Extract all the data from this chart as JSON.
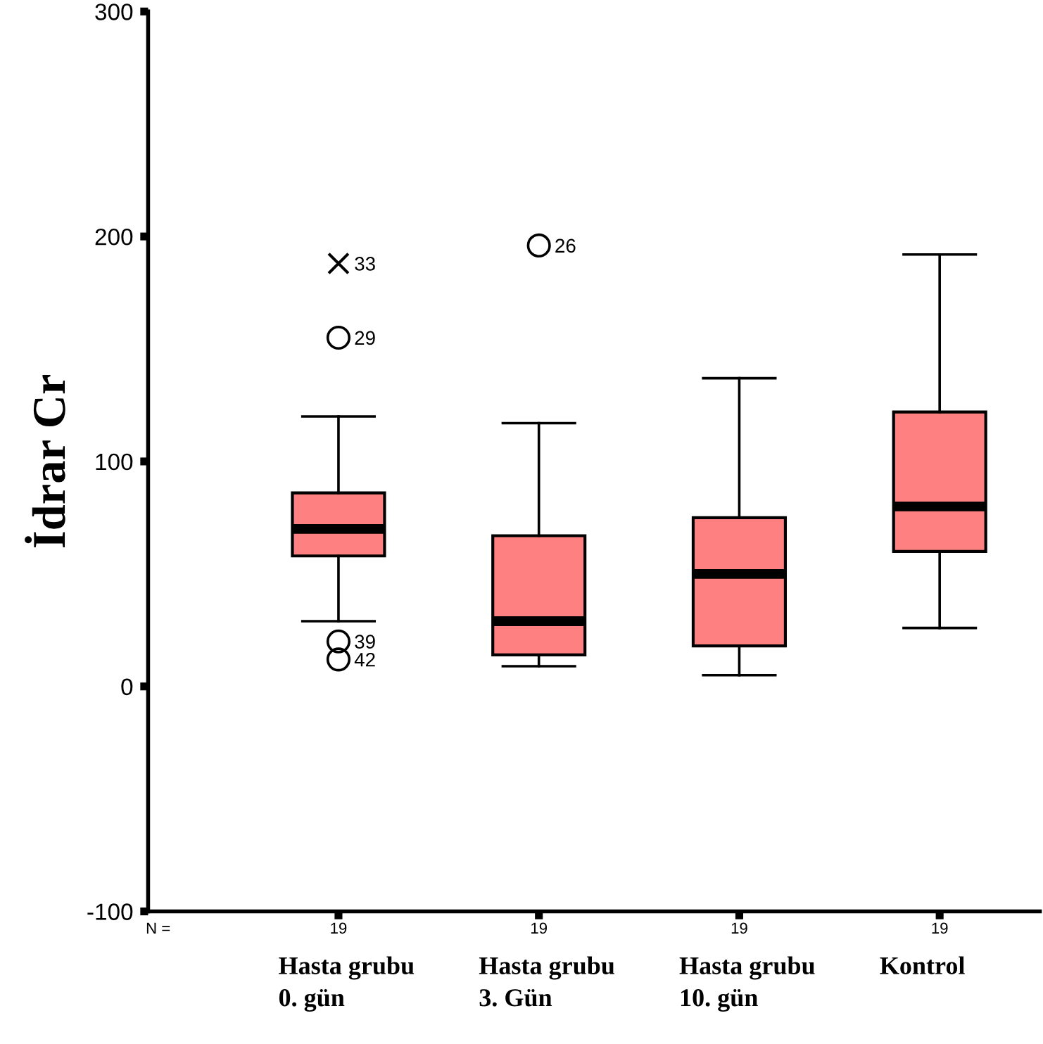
{
  "chart_data": {
    "type": "box",
    "ylabel": "İdrar Cr",
    "categories": [
      "Hasta grubu\n0. gün",
      "Hasta grubu\n3. Gün",
      "Hasta grubu\n10. gün",
      "Kontrol"
    ],
    "color": "#ff8080",
    "boxes": [
      {
        "low": 29,
        "q1": 58,
        "median": 70,
        "q3": 86,
        "high": 120,
        "outliers": [
          155,
          20,
          12
        ]
      },
      {
        "low": 9,
        "q1": 14,
        "median": 29,
        "q3": 67,
        "high": 117,
        "outliers": [
          196
        ]
      },
      {
        "low": 5,
        "q1": 18,
        "median": 50,
        "q3": 75,
        "high": 137
      },
      {
        "low": 26,
        "q1": 60,
        "median": 80,
        "q3": 122,
        "high": 192
      }
    ],
    "series": [
      {
        "type": "scatter",
        "marker": "cross",
        "color": "#000000",
        "x": [
          "Hasta grubu\n0. gün"
        ],
        "values": [
          188
        ]
      }
    ],
    "ylim": [
      -100,
      300
    ],
    "yticks": [
      -100,
      0,
      100,
      200,
      300
    ],
    "grid": false,
    "annotations": [
      "33",
      "29",
      "39",
      "42",
      "26",
      "N =",
      "19",
      "19",
      "19",
      "19"
    ]
  }
}
